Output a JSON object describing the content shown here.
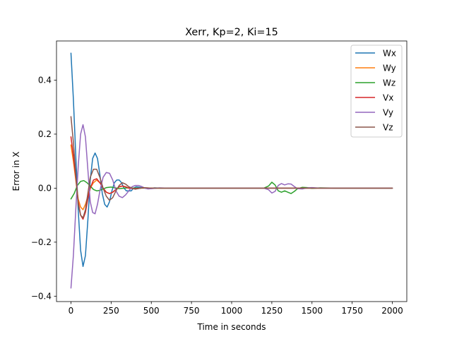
{
  "chart_data": {
    "type": "line",
    "title": "Xerr, Kp=2, Ki=15",
    "xlabel": "Time in seconds",
    "ylabel": "Error in X",
    "xlim": [
      -90,
      2090
    ],
    "ylim": [
      -0.42,
      0.545
    ],
    "xticks": [
      0,
      250,
      500,
      750,
      1000,
      1250,
      1500,
      1750,
      2000
    ],
    "xtick_labels": [
      "0",
      "250",
      "500",
      "750",
      "1000",
      "1250",
      "1500",
      "1750",
      "2000"
    ],
    "yticks": [
      -0.4,
      -0.2,
      0.0,
      0.2,
      0.4
    ],
    "ytick_labels": [
      "−0.4",
      "−0.2",
      "0.0",
      "0.2",
      "0.4"
    ],
    "grid": false,
    "legend_position": "top-right",
    "series": [
      {
        "name": "Wx",
        "color": "#1f77b4",
        "x": [
          0,
          15,
          30,
          45,
          60,
          75,
          90,
          105,
          120,
          135,
          150,
          165,
          180,
          195,
          210,
          225,
          240,
          255,
          270,
          285,
          300,
          315,
          330,
          345,
          360,
          375,
          390,
          405,
          420,
          450,
          480,
          520,
          560,
          620,
          700,
          800,
          1000,
          1200,
          1400,
          1600,
          1800,
          2000
        ],
        "y": [
          0.5,
          0.33,
          0.12,
          -0.08,
          -0.23,
          -0.29,
          -0.25,
          -0.12,
          0.03,
          0.11,
          0.13,
          0.11,
          0.05,
          -0.02,
          -0.06,
          -0.07,
          -0.05,
          -0.01,
          0.02,
          0.03,
          0.03,
          0.02,
          0.0,
          -0.01,
          -0.01,
          -0.01,
          0.0,
          0.005,
          0.004,
          0.001,
          -0.002,
          0.001,
          0.0,
          0.0,
          0.0,
          0.0,
          0.0,
          0.0,
          0.0,
          0.0,
          0.0,
          0.0
        ]
      },
      {
        "name": "Wy",
        "color": "#ff7f0e",
        "x": [
          0,
          15,
          30,
          45,
          60,
          75,
          90,
          105,
          120,
          140,
          160,
          180,
          200,
          220,
          240,
          260,
          280,
          300,
          320,
          340,
          360,
          400,
          450,
          500,
          600,
          800,
          1000,
          1200,
          1400,
          1600,
          1800,
          2000
        ],
        "y": [
          0.16,
          0.1,
          0.03,
          -0.04,
          -0.07,
          -0.08,
          -0.06,
          -0.03,
          0.0,
          0.02,
          0.03,
          0.02,
          0.0,
          -0.015,
          -0.02,
          -0.015,
          -0.005,
          0.005,
          0.008,
          0.005,
          0.0,
          -0.003,
          0.001,
          0.0,
          0.0,
          0.0,
          0.0,
          0.0,
          0.0,
          0.0,
          0.0,
          0.0
        ]
      },
      {
        "name": "Wz",
        "color": "#2ca02c",
        "x": [
          0,
          20,
          40,
          60,
          80,
          100,
          120,
          140,
          160,
          180,
          200,
          220,
          250,
          300,
          350,
          400,
          500,
          700,
          900,
          1100,
          1200,
          1230,
          1250,
          1270,
          1290,
          1310,
          1330,
          1350,
          1370,
          1390,
          1410,
          1440,
          1470,
          1500,
          1550,
          1650,
          1800,
          2000
        ],
        "y": [
          -0.04,
          -0.02,
          0.01,
          0.025,
          0.028,
          0.02,
          0.008,
          -0.005,
          -0.01,
          -0.008,
          -0.003,
          0.002,
          0.004,
          -0.002,
          0.001,
          0.0,
          0.0,
          0.0,
          0.0,
          0.0,
          0.0,
          0.008,
          0.022,
          0.012,
          -0.01,
          -0.015,
          -0.01,
          -0.015,
          -0.02,
          -0.012,
          -0.002,
          0.003,
          0.002,
          -0.001,
          0.001,
          0.0,
          0.0,
          0.0
        ]
      },
      {
        "name": "Vx",
        "color": "#d62728",
        "x": [
          0,
          15,
          30,
          45,
          60,
          75,
          90,
          105,
          120,
          140,
          160,
          180,
          200,
          220,
          240,
          260,
          280,
          300,
          320,
          340,
          360,
          400,
          450,
          500,
          600,
          800,
          1000,
          1200,
          1400,
          1600,
          1800,
          2000
        ],
        "y": [
          0.19,
          0.12,
          0.04,
          -0.05,
          -0.1,
          -0.115,
          -0.09,
          -0.04,
          0.0,
          0.03,
          0.035,
          0.02,
          0.0,
          -0.015,
          -0.02,
          -0.015,
          -0.005,
          0.005,
          0.008,
          0.005,
          0.0,
          -0.002,
          0.001,
          0.0,
          0.0,
          0.0,
          0.0,
          0.0,
          0.0,
          0.0,
          0.0,
          0.0
        ]
      },
      {
        "name": "Vy",
        "color": "#9467bd",
        "x": [
          0,
          15,
          30,
          45,
          60,
          75,
          90,
          105,
          120,
          135,
          150,
          165,
          180,
          200,
          220,
          240,
          260,
          280,
          300,
          320,
          340,
          360,
          380,
          400,
          420,
          440,
          460,
          480,
          500,
          550,
          600,
          700,
          900,
          1100,
          1200,
          1230,
          1250,
          1270,
          1290,
          1310,
          1330,
          1350,
          1370,
          1390,
          1410,
          1440,
          1470,
          1500,
          1550,
          1650,
          1800,
          2000
        ],
        "y": [
          -0.37,
          -0.25,
          -0.08,
          0.08,
          0.2,
          0.235,
          0.19,
          0.07,
          -0.05,
          -0.09,
          -0.095,
          -0.06,
          -0.01,
          0.04,
          0.058,
          0.055,
          0.03,
          -0.01,
          -0.03,
          -0.035,
          -0.025,
          -0.01,
          0.005,
          0.01,
          0.01,
          0.006,
          0.0,
          -0.003,
          -0.002,
          0.001,
          0.0,
          0.0,
          0.0,
          0.0,
          0.0,
          -0.006,
          -0.018,
          -0.012,
          0.01,
          0.017,
          0.012,
          0.016,
          0.015,
          0.006,
          -0.002,
          -0.003,
          0.001,
          0.002,
          0.0,
          0.0,
          0.0,
          0.0
        ]
      },
      {
        "name": "Vz",
        "color": "#8c564b",
        "x": [
          0,
          15,
          30,
          45,
          60,
          75,
          90,
          105,
          120,
          140,
          160,
          180,
          200,
          220,
          240,
          260,
          280,
          300,
          320,
          340,
          360,
          400,
          450,
          500,
          600,
          800,
          1000,
          1200,
          1400,
          1600,
          1800,
          2000
        ],
        "y": [
          0.265,
          0.17,
          0.05,
          -0.06,
          -0.1,
          -0.11,
          -0.08,
          -0.02,
          0.04,
          0.07,
          0.07,
          0.04,
          0.0,
          -0.03,
          -0.045,
          -0.035,
          -0.01,
          0.01,
          0.02,
          0.015,
          0.005,
          -0.004,
          0.002,
          0.0,
          0.0,
          0.0,
          0.0,
          0.0,
          0.0,
          0.0,
          0.0,
          0.0
        ]
      }
    ]
  }
}
